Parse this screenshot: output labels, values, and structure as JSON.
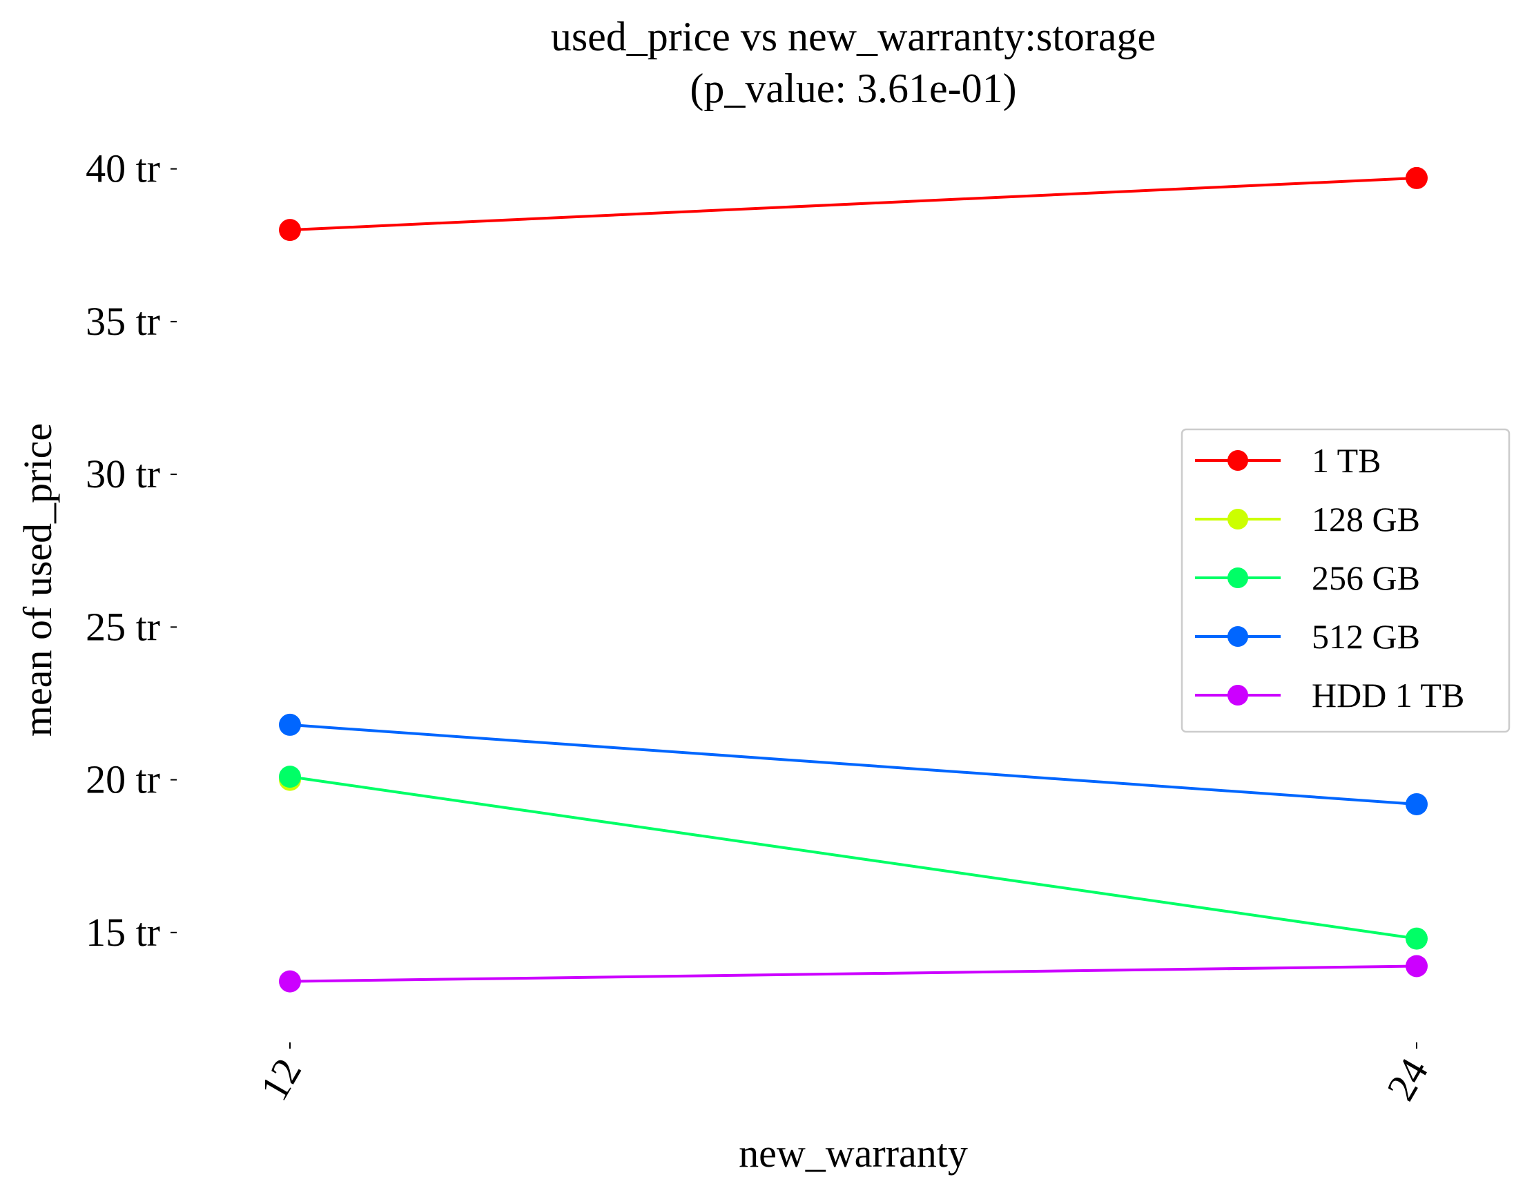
{
  "chart_data": {
    "type": "line",
    "title": "used_price vs new_warranty:storage",
    "subtitle": "(p_value: 3.61e-01)",
    "xlabel": "new_warranty",
    "ylabel": "mean of used_price",
    "categories": [
      "12",
      "24"
    ],
    "y_tick_values": [
      15000000,
      20000000,
      25000000,
      30000000,
      35000000,
      40000000
    ],
    "y_tick_labels": [
      "15 tr",
      "20 tr",
      "25 tr",
      "30 tr",
      "35 tr",
      "40 tr"
    ],
    "ylim": [
      10950000,
      41800000
    ],
    "grid": false,
    "legend_position": "right",
    "series": [
      {
        "name": "1 TB",
        "color": "#ff0000",
        "values": [
          38000000,
          39700000
        ]
      },
      {
        "name": "128 GB",
        "color": "#ccff00",
        "values": [
          20000000,
          null
        ]
      },
      {
        "name": "256 GB",
        "color": "#00ff66",
        "values": [
          20100000,
          14800000
        ]
      },
      {
        "name": "512 GB",
        "color": "#0066ff",
        "values": [
          21800000,
          19200000
        ]
      },
      {
        "name": "HDD 1 TB",
        "color": "#cc00ff",
        "values": [
          13400000,
          13900000
        ]
      }
    ]
  }
}
